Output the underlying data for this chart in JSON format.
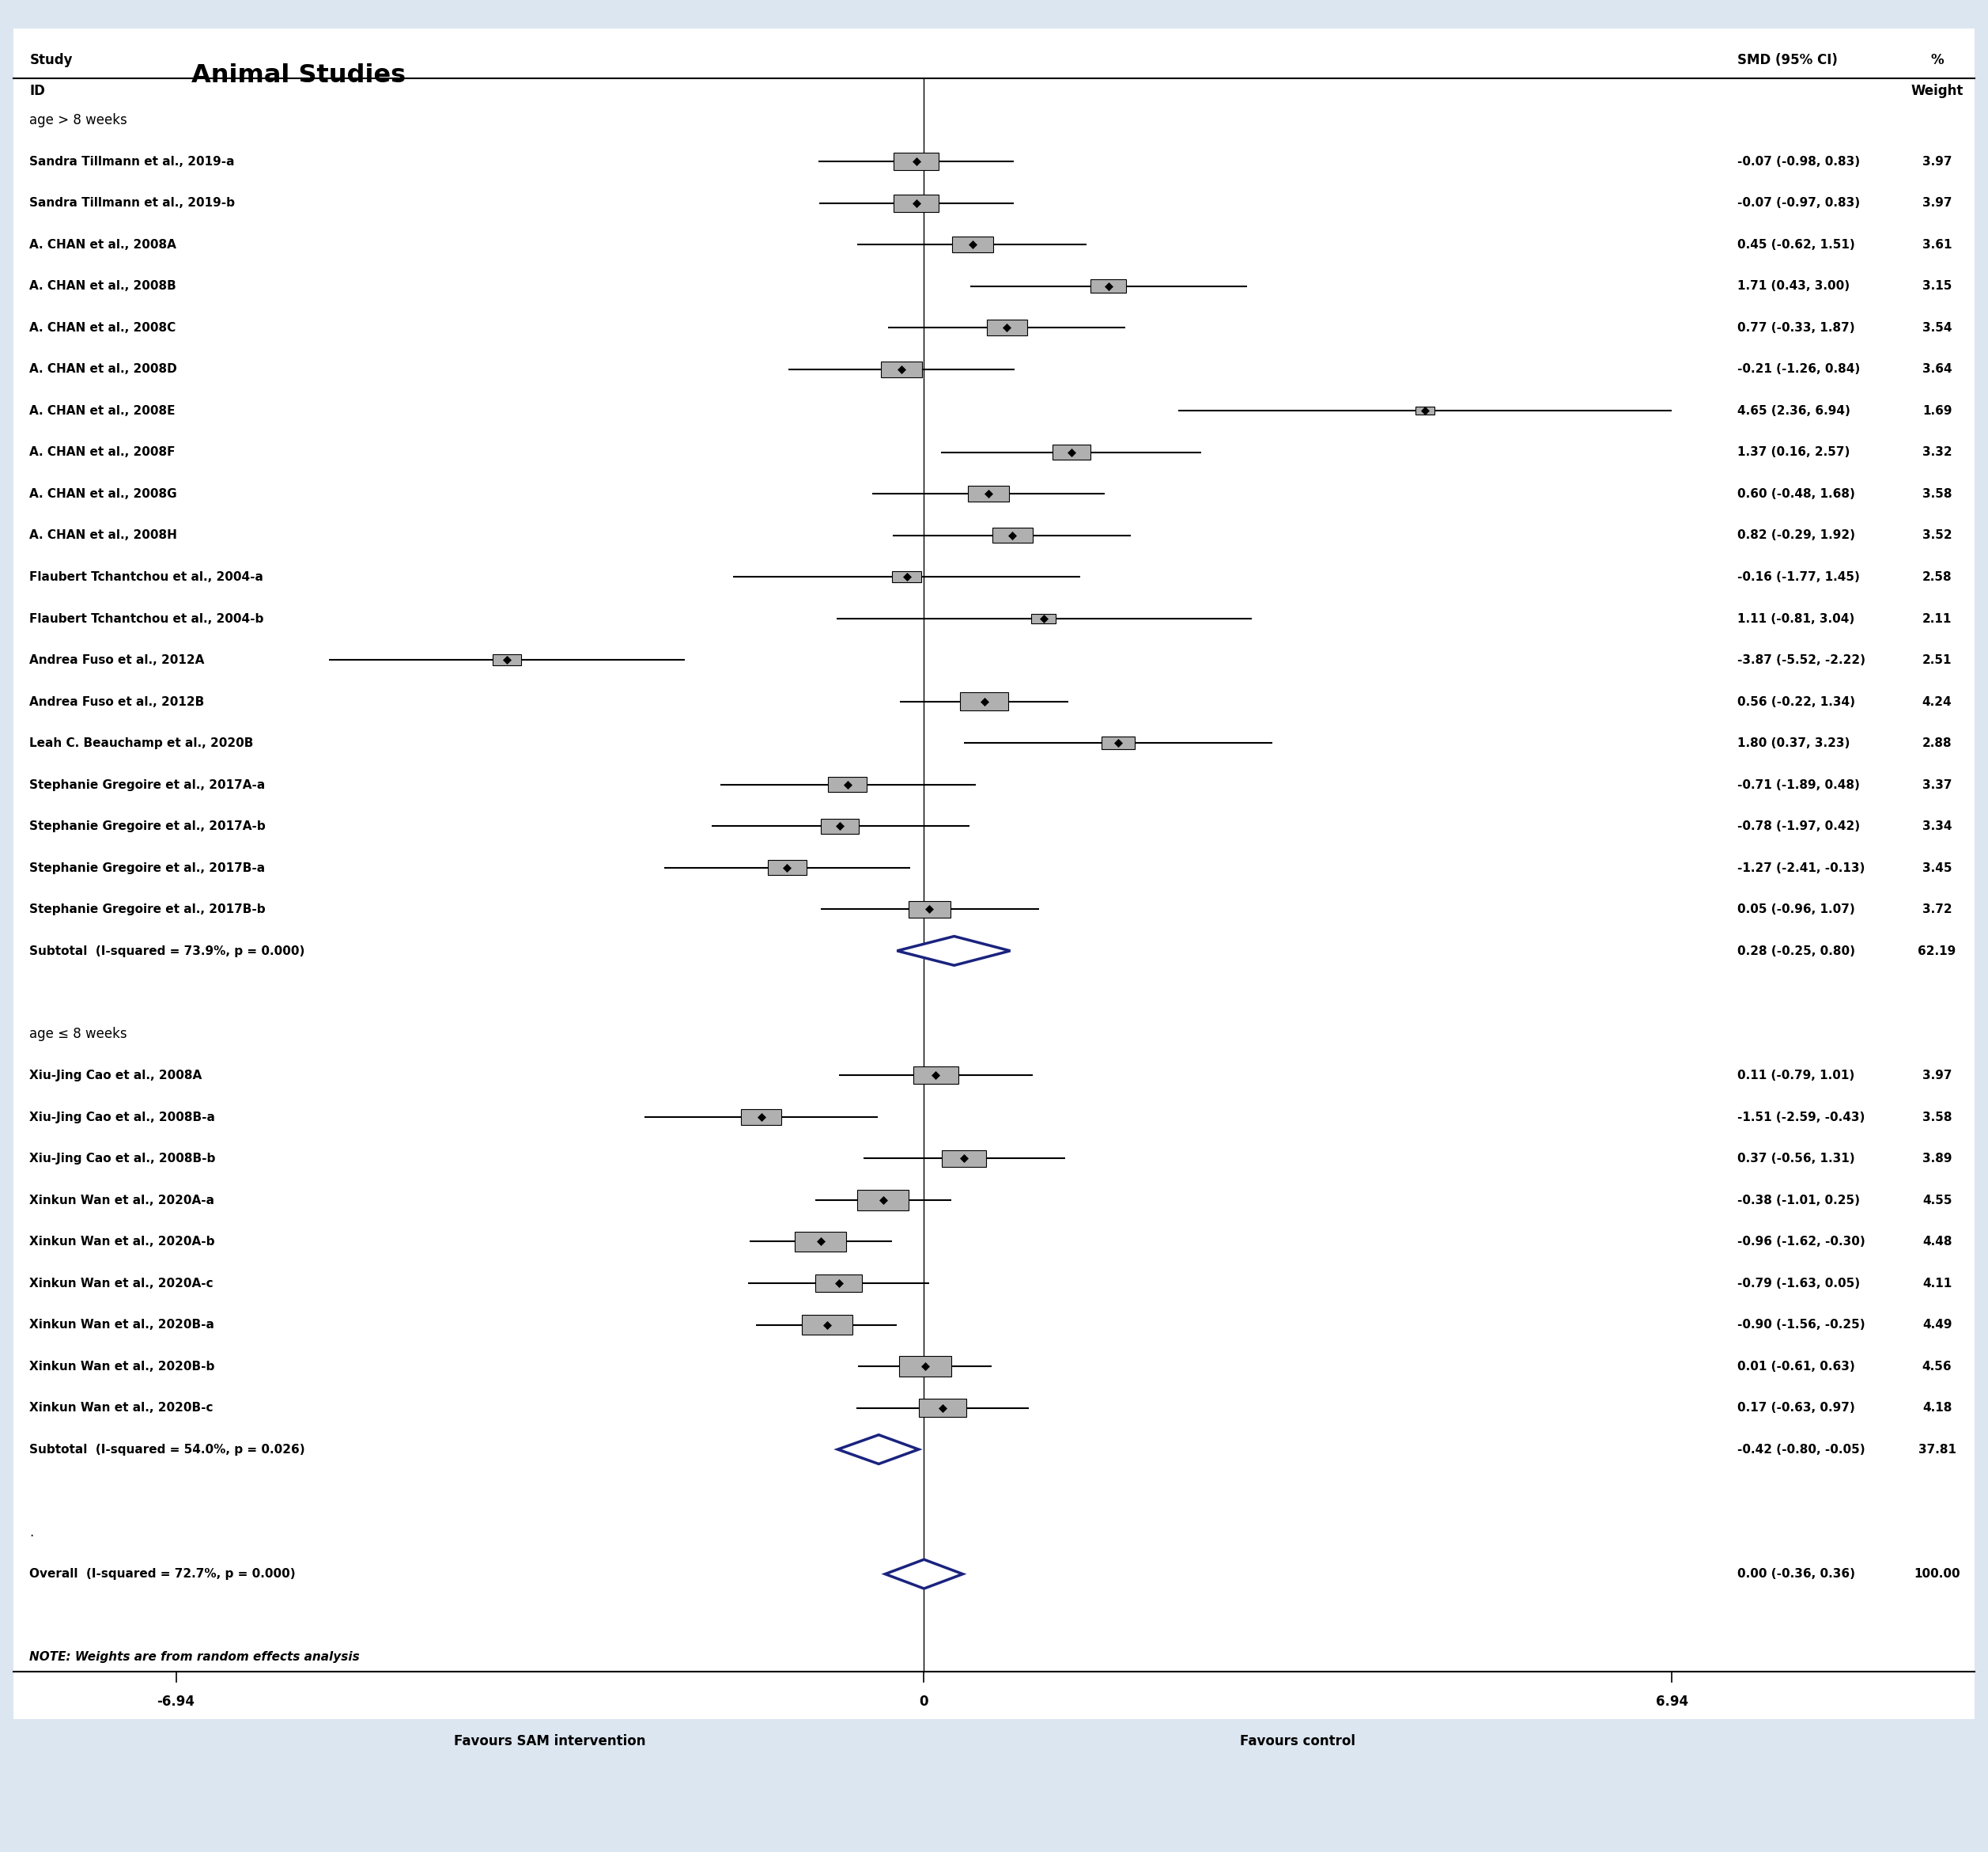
{
  "background_color": "#dce6f0",
  "plot_bg_color": "#ffffff",
  "title_main": "Animal Studies",
  "col_smd": "SMD (95% CI)",
  "x_min": -8.5,
  "x_max": 9.8,
  "x_ticks": [
    -6.94,
    0,
    6.94
  ],
  "x_tick_labels": [
    "-6.94",
    "0",
    "6.94"
  ],
  "x_label_left": "Favours SAM intervention",
  "x_label_right": "Favours control",
  "subgroups": [
    {
      "label": "age > 8 weeks",
      "studies": [
        {
          "name": "Sandra Tillmann et al., 2019-a",
          "smd": -0.07,
          "ci_lo": -0.98,
          "ci_hi": 0.83,
          "weight": 3.97,
          "weight_str": "3.97",
          "smd_str": "-0.07 (-0.98, 0.83)"
        },
        {
          "name": "Sandra Tillmann et al., 2019-b",
          "smd": -0.07,
          "ci_lo": -0.97,
          "ci_hi": 0.83,
          "weight": 3.97,
          "weight_str": "3.97",
          "smd_str": "-0.07 (-0.97, 0.83)"
        },
        {
          "name": "A. CHAN et al., 2008A",
          "smd": 0.45,
          "ci_lo": -0.62,
          "ci_hi": 1.51,
          "weight": 3.61,
          "weight_str": "3.61",
          "smd_str": "0.45 (-0.62, 1.51)"
        },
        {
          "name": "A. CHAN et al., 2008B",
          "smd": 1.71,
          "ci_lo": 0.43,
          "ci_hi": 3.0,
          "weight": 3.15,
          "weight_str": "3.15",
          "smd_str": "1.71 (0.43, 3.00)"
        },
        {
          "name": "A. CHAN et al., 2008C",
          "smd": 0.77,
          "ci_lo": -0.33,
          "ci_hi": 1.87,
          "weight": 3.54,
          "weight_str": "3.54",
          "smd_str": "0.77 (-0.33, 1.87)"
        },
        {
          "name": "A. CHAN et al., 2008D",
          "smd": -0.21,
          "ci_lo": -1.26,
          "ci_hi": 0.84,
          "weight": 3.64,
          "weight_str": "3.64",
          "smd_str": "-0.21 (-1.26, 0.84)"
        },
        {
          "name": "A. CHAN et al., 2008E",
          "smd": 4.65,
          "ci_lo": 2.36,
          "ci_hi": 6.94,
          "weight": 1.69,
          "weight_str": "1.69",
          "smd_str": "4.65 (2.36, 6.94)"
        },
        {
          "name": "A. CHAN et al., 2008F",
          "smd": 1.37,
          "ci_lo": 0.16,
          "ci_hi": 2.57,
          "weight": 3.32,
          "weight_str": "3.32",
          "smd_str": "1.37 (0.16, 2.57)"
        },
        {
          "name": "A. CHAN et al., 2008G",
          "smd": 0.6,
          "ci_lo": -0.48,
          "ci_hi": 1.68,
          "weight": 3.58,
          "weight_str": "3.58",
          "smd_str": "0.60 (-0.48, 1.68)"
        },
        {
          "name": "A. CHAN et al., 2008H",
          "smd": 0.82,
          "ci_lo": -0.29,
          "ci_hi": 1.92,
          "weight": 3.52,
          "weight_str": "3.52",
          "smd_str": "0.82 (-0.29, 1.92)"
        },
        {
          "name": "Flaubert Tchantchou et al., 2004-a",
          "smd": -0.16,
          "ci_lo": -1.77,
          "ci_hi": 1.45,
          "weight": 2.58,
          "weight_str": "2.58",
          "smd_str": "-0.16 (-1.77, 1.45)"
        },
        {
          "name": "Flaubert Tchantchou et al., 2004-b",
          "smd": 1.11,
          "ci_lo": -0.81,
          "ci_hi": 3.04,
          "weight": 2.11,
          "weight_str": "2.11",
          "smd_str": "1.11 (-0.81, 3.04)"
        },
        {
          "name": "Andrea Fuso et al., 2012A",
          "smd": -3.87,
          "ci_lo": -5.52,
          "ci_hi": -2.22,
          "weight": 2.51,
          "weight_str": "2.51",
          "smd_str": "-3.87 (-5.52, -2.22)"
        },
        {
          "name": "Andrea Fuso et al., 2012B",
          "smd": 0.56,
          "ci_lo": -0.22,
          "ci_hi": 1.34,
          "weight": 4.24,
          "weight_str": "4.24",
          "smd_str": "0.56 (-0.22, 1.34)"
        },
        {
          "name": "Leah C. Beauchamp et al., 2020B",
          "smd": 1.8,
          "ci_lo": 0.37,
          "ci_hi": 3.23,
          "weight": 2.88,
          "weight_str": "2.88",
          "smd_str": "1.80 (0.37, 3.23)"
        },
        {
          "name": "Stephanie Gregoire et al., 2017A-a",
          "smd": -0.71,
          "ci_lo": -1.89,
          "ci_hi": 0.48,
          "weight": 3.37,
          "weight_str": "3.37",
          "smd_str": "-0.71 (-1.89, 0.48)"
        },
        {
          "name": "Stephanie Gregoire et al., 2017A-b",
          "smd": -0.78,
          "ci_lo": -1.97,
          "ci_hi": 0.42,
          "weight": 3.34,
          "weight_str": "3.34",
          "smd_str": "-0.78 (-1.97, 0.42)"
        },
        {
          "name": "Stephanie Gregoire et al., 2017B-a",
          "smd": -1.27,
          "ci_lo": -2.41,
          "ci_hi": -0.13,
          "weight": 3.45,
          "weight_str": "3.45",
          "smd_str": "-1.27 (-2.41, -0.13)"
        },
        {
          "name": "Stephanie Gregoire et al., 2017B-b",
          "smd": 0.05,
          "ci_lo": -0.96,
          "ci_hi": 1.07,
          "weight": 3.72,
          "weight_str": "3.72",
          "smd_str": "0.05 (-0.96, 1.07)"
        }
      ],
      "subtotal": {
        "smd": 0.28,
        "ci_lo": -0.25,
        "ci_hi": 0.8,
        "weight_str": "62.19",
        "label": "Subtotal  (I-squared = 73.9%, p = 0.000)",
        "smd_str": "0.28 (-0.25, 0.80)"
      }
    },
    {
      "label": "age ≤ 8 weeks",
      "studies": [
        {
          "name": "Xiu-Jing Cao et al., 2008A",
          "smd": 0.11,
          "ci_lo": -0.79,
          "ci_hi": 1.01,
          "weight": 3.97,
          "weight_str": "3.97",
          "smd_str": "0.11 (-0.79, 1.01)"
        },
        {
          "name": "Xiu-Jing Cao et al., 2008B-a",
          "smd": -1.51,
          "ci_lo": -2.59,
          "ci_hi": -0.43,
          "weight": 3.58,
          "weight_str": "3.58",
          "smd_str": "-1.51 (-2.59, -0.43)"
        },
        {
          "name": "Xiu-Jing Cao et al., 2008B-b",
          "smd": 0.37,
          "ci_lo": -0.56,
          "ci_hi": 1.31,
          "weight": 3.89,
          "weight_str": "3.89",
          "smd_str": "0.37 (-0.56, 1.31)"
        },
        {
          "name": "Xinkun Wan et al., 2020A-a",
          "smd": -0.38,
          "ci_lo": -1.01,
          "ci_hi": 0.25,
          "weight": 4.55,
          "weight_str": "4.55",
          "smd_str": "-0.38 (-1.01, 0.25)"
        },
        {
          "name": "Xinkun Wan et al., 2020A-b",
          "smd": -0.96,
          "ci_lo": -1.62,
          "ci_hi": -0.3,
          "weight": 4.48,
          "weight_str": "4.48",
          "smd_str": "-0.96 (-1.62, -0.30)"
        },
        {
          "name": "Xinkun Wan et al., 2020A-c",
          "smd": -0.79,
          "ci_lo": -1.63,
          "ci_hi": 0.05,
          "weight": 4.11,
          "weight_str": "4.11",
          "smd_str": "-0.79 (-1.63, 0.05)"
        },
        {
          "name": "Xinkun Wan et al., 2020B-a",
          "smd": -0.9,
          "ci_lo": -1.56,
          "ci_hi": -0.25,
          "weight": 4.49,
          "weight_str": "4.49",
          "smd_str": "-0.90 (-1.56, -0.25)"
        },
        {
          "name": "Xinkun Wan et al., 2020B-b",
          "smd": 0.01,
          "ci_lo": -0.61,
          "ci_hi": 0.63,
          "weight": 4.56,
          "weight_str": "4.56",
          "smd_str": "0.01 (-0.61, 0.63)"
        },
        {
          "name": "Xinkun Wan et al., 2020B-c",
          "smd": 0.17,
          "ci_lo": -0.63,
          "ci_hi": 0.97,
          "weight": 4.18,
          "weight_str": "4.18",
          "smd_str": "0.17 (-0.63, 0.97)"
        }
      ],
      "subtotal": {
        "smd": -0.42,
        "ci_lo": -0.8,
        "ci_hi": -0.05,
        "weight_str": "37.81",
        "label": "Subtotal  (I-squared = 54.0%, p = 0.026)",
        "smd_str": "-0.42 (-0.80, -0.05)"
      }
    }
  ],
  "overall": {
    "smd": 0.0,
    "ci_lo": -0.36,
    "ci_hi": 0.36,
    "weight_str": "100.00",
    "label": "Overall  (I-squared = 72.7%, p = 0.000)",
    "smd_str": "0.00 (-0.36, 0.36)"
  },
  "note": "NOTE: Weights are from random effects analysis",
  "diamond_color": "#1a237e",
  "subgroup_label_fontsize": 11,
  "study_label_fontsize": 10,
  "header_fontsize": 11,
  "smd_weight_fontsize": 10,
  "note_fontsize": 10,
  "axis_label_fontsize": 11
}
